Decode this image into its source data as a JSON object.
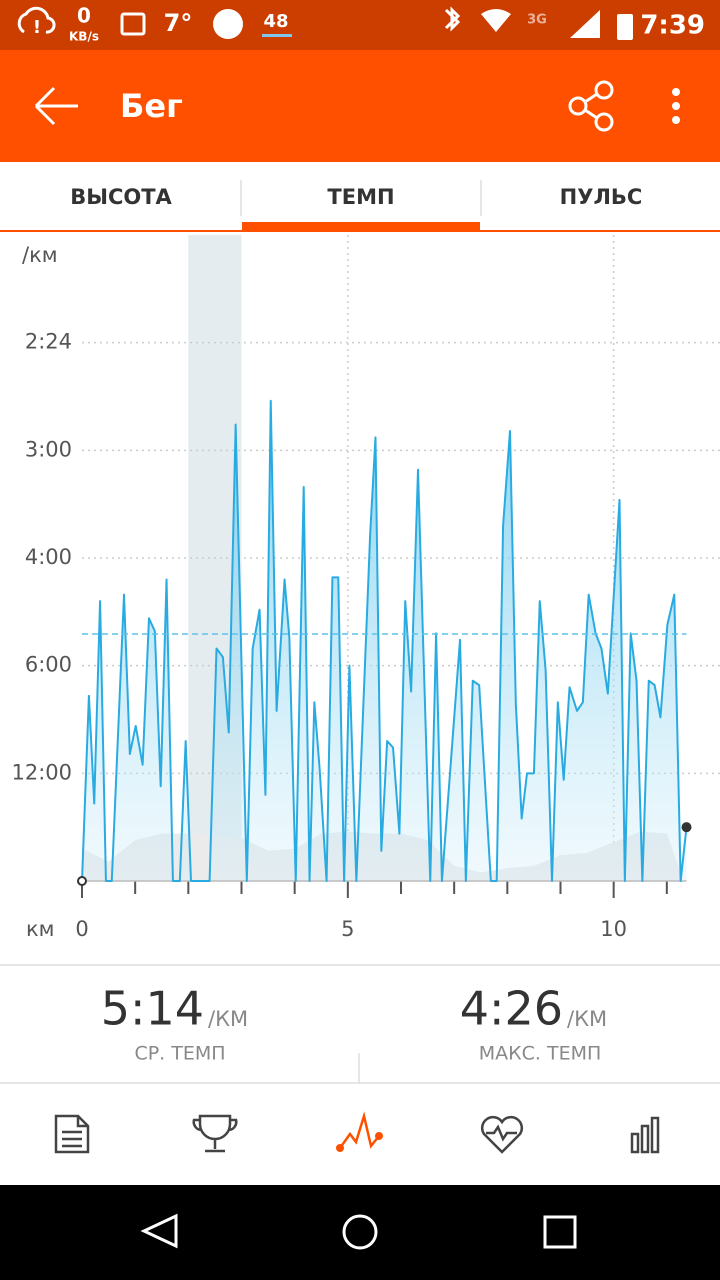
{
  "status_bar": {
    "speed_value": "0",
    "speed_unit": "KB/s",
    "temperature": "7°",
    "badge": "48",
    "network": "3G",
    "time": "7:39"
  },
  "app_bar": {
    "title": "Бег"
  },
  "tabs": [
    "ВЫСОТА",
    "ТЕМП",
    "ПУЛЬС"
  ],
  "chart_data": {
    "type": "line",
    "y_label": "/км",
    "x_label": "км",
    "color": "#29abe2",
    "x": [
      0,
      0.13,
      0.23,
      0.34,
      0.45,
      0.56,
      0.79,
      0.9,
      1.01,
      1.14,
      1.26,
      1.37,
      1.48,
      1.59,
      1.71,
      1.84,
      1.95,
      2.05,
      2.4,
      2.53,
      2.65,
      2.76,
      2.89,
      3.1,
      3.21,
      3.34,
      3.45,
      3.55,
      3.66,
      3.81,
      3.9,
      4.02,
      4.17,
      4.28,
      4.37,
      4.47,
      4.6,
      4.71,
      4.82,
      4.93,
      5.03,
      5.16,
      5.42,
      5.52,
      5.63,
      5.74,
      5.85,
      5.97,
      6.08,
      6.19,
      6.32,
      6.55,
      6.66,
      6.77,
      7.11,
      7.22,
      7.35,
      7.47,
      7.69,
      7.8,
      7.92,
      8.05,
      8.16,
      8.27,
      8.37,
      8.5,
      8.61,
      8.72,
      8.84,
      8.95,
      9.06,
      9.17,
      9.31,
      9.42,
      9.53,
      9.66,
      9.77,
      9.89,
      10.11,
      10.21,
      10.32,
      10.43,
      10.54,
      10.66,
      10.77,
      10.88,
      11.01,
      11.14,
      11.26,
      11.37
    ],
    "values": [
      0,
      8.6,
      3.6,
      13.0,
      0,
      0,
      13.3,
      5.9,
      7.2,
      5.4,
      12.2,
      11.6,
      4.4,
      14.0,
      0,
      0,
      6.5,
      0,
      0,
      10.8,
      10.4,
      6.9,
      21.2,
      0,
      10.8,
      12.6,
      4.0,
      22.3,
      7.9,
      14.0,
      11.3,
      0,
      18.3,
      0,
      8.3,
      5.2,
      0,
      14.1,
      14.1,
      0,
      10.0,
      0,
      16.1,
      20.6,
      1.4,
      6.5,
      6.2,
      2.2,
      13.0,
      8.8,
      19.1,
      0,
      11.5,
      0,
      11.2,
      0,
      9.3,
      9.1,
      0,
      0,
      16.5,
      20.9,
      8.2,
      2.9,
      5.0,
      5.0,
      13.0,
      9.8,
      0,
      8.3,
      4.7,
      9.0,
      7.9,
      8.3,
      13.3,
      11.5,
      10.8,
      8.7,
      17.7,
      0,
      11.5,
      9.3,
      0,
      9.3,
      9.1,
      7.6,
      11.9,
      13.3,
      0,
      2.5
    ],
    "xlim": [
      0,
      12
    ],
    "ylim": [
      0,
      30
    ],
    "xticks": [
      0,
      5,
      10
    ],
    "xticks_minor": [
      1,
      2,
      3,
      4,
      6,
      7,
      8,
      9,
      11
    ],
    "yticks": [
      {
        "value": 25,
        "label": "2:24"
      },
      {
        "value": 20,
        "label": "3:00"
      },
      {
        "value": 15,
        "label": "4:00"
      },
      {
        "value": 10,
        "label": "6:00"
      },
      {
        "value": 5,
        "label": "12:00"
      }
    ],
    "grid": true,
    "average": 11.47,
    "highlight": [
      2,
      3
    ],
    "background": {
      "x": [
        0,
        0.5,
        1,
        1.5,
        2,
        2.5,
        3,
        3.5,
        4,
        4.5,
        5,
        5.5,
        6,
        6.5,
        7,
        7.5,
        8,
        8.5,
        9,
        9.5,
        10,
        10.5,
        11,
        11.26
      ],
      "values": [
        1.5,
        0.9,
        1.9,
        2.2,
        2.2,
        2.1,
        2.0,
        1.4,
        1.5,
        2.2,
        2.3,
        2.2,
        2.2,
        1.9,
        0.7,
        0.4,
        0.6,
        0.7,
        1.2,
        1.3,
        1.8,
        2.3,
        2.2,
        0.4
      ]
    }
  },
  "stats": [
    {
      "value": "5:14",
      "unit": "/КМ",
      "label": "СР. ТЕМП"
    },
    {
      "value": "4:26",
      "unit": "/КМ",
      "label": "МАКС. ТЕМП"
    }
  ]
}
